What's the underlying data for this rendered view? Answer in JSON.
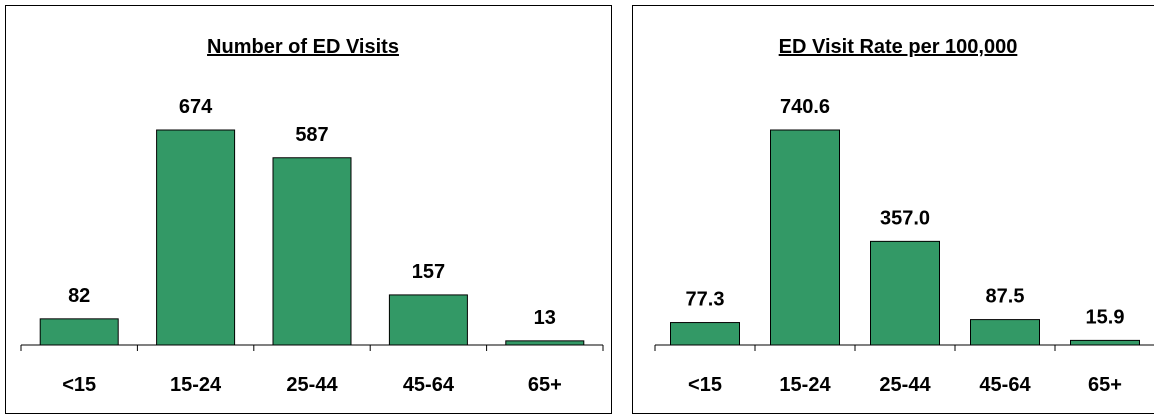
{
  "chart_data": [
    {
      "type": "bar",
      "title": "Number of ED Visits",
      "categories": [
        "<15",
        "15-24",
        "25-44",
        "45-64",
        "65+"
      ],
      "values": [
        82,
        674,
        587,
        157,
        13
      ],
      "value_labels": [
        "82",
        "674",
        "587",
        "157",
        "13"
      ],
      "ylim": [
        0,
        1000
      ],
      "grid": false,
      "bar_color": "#339966"
    },
    {
      "type": "bar",
      "title": "ED Visit Rate per 100,000",
      "categories": [
        "<15",
        "15-24",
        "25-44",
        "45-64",
        "65+"
      ],
      "values": [
        77.3,
        740.6,
        357.0,
        87.5,
        15.9
      ],
      "value_labels": [
        "77.3",
        "740.6",
        "357.0",
        "87.5",
        "15.9"
      ],
      "ylim": [
        0,
        1000
      ],
      "grid": false,
      "bar_color": "#339966"
    }
  ]
}
